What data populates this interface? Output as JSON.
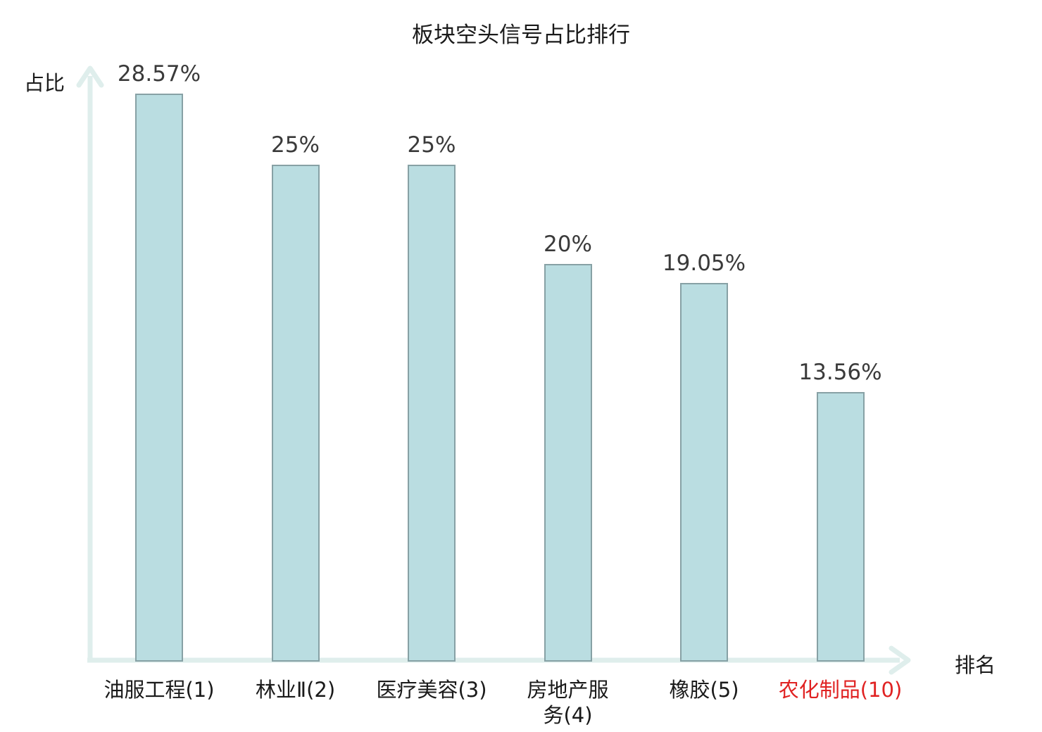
{
  "chart_data": {
    "type": "bar",
    "title": "板块空头信号占比排行",
    "xlabel": "排名",
    "ylabel": "占比",
    "categories": [
      "油服工程(1)",
      "林业Ⅱ(2)",
      "医疗美容(3)",
      "房地产服务(4)",
      "橡胶(5)",
      "农化制品(10)"
    ],
    "values": [
      28.57,
      25,
      25,
      20,
      19.05,
      13.56
    ],
    "value_labels": [
      "28.57%",
      "25%",
      "25%",
      "20%",
      "19.05%",
      "13.56%"
    ],
    "highlighted_category_index": 5,
    "ylim": [
      0,
      30
    ],
    "grid": false,
    "legend": "none",
    "style": {
      "bar_fill": "#badde1",
      "bar_border": "#87a1a5",
      "axis_color": "#dfeeec",
      "title_color": "#1a1a1a",
      "value_label_color": "#3a3a3a",
      "category_label_color": "#1a1a1a",
      "highlight_color": "#e02222"
    }
  }
}
